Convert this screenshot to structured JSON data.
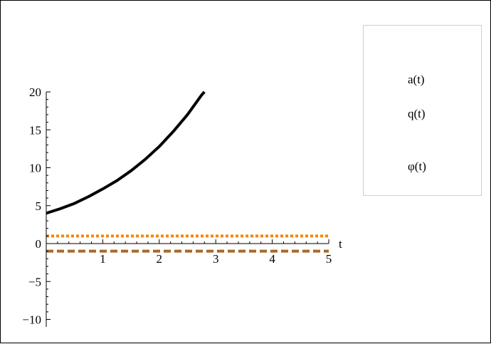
{
  "chart_data": {
    "type": "line",
    "title": "",
    "xlabel": "t",
    "ylabel": "",
    "xlim": [
      0,
      5
    ],
    "ylim": [
      -10,
      20
    ],
    "x_ticks": [
      {
        "value": 1,
        "label": "1"
      },
      {
        "value": 2,
        "label": "2"
      },
      {
        "value": 3,
        "label": "3"
      },
      {
        "value": 4,
        "label": "4"
      },
      {
        "value": 5,
        "label": "5"
      }
    ],
    "y_ticks": [
      {
        "value": -10,
        "label": "−10"
      },
      {
        "value": -5,
        "label": "−5"
      },
      {
        "value": 0,
        "label": "0"
      },
      {
        "value": 5,
        "label": "5"
      },
      {
        "value": 10,
        "label": "10"
      },
      {
        "value": 15,
        "label": "15"
      },
      {
        "value": 20,
        "label": "20"
      }
    ],
    "grid": false,
    "legend_position": "top-right",
    "series": [
      {
        "name": "a(t)",
        "color": "#000000",
        "style": "solid",
        "x": [
          0,
          0.25,
          0.5,
          0.75,
          1,
          1.25,
          1.5,
          1.75,
          2,
          2.25,
          2.5,
          2.75,
          2.8
        ],
        "y": [
          4.0,
          4.6,
          5.3,
          6.2,
          7.2,
          8.3,
          9.6,
          11.1,
          12.8,
          14.8,
          17.0,
          19.6,
          20.0
        ]
      },
      {
        "name": "q(t)",
        "color": "#a8682a",
        "style": "dashed",
        "x": [
          0,
          5
        ],
        "y": [
          -1,
          -1
        ]
      },
      {
        "name": "φ(t)",
        "color": "#f5860a",
        "style": "dotted",
        "x": [
          0,
          5
        ],
        "y": [
          1,
          1
        ]
      }
    ]
  }
}
